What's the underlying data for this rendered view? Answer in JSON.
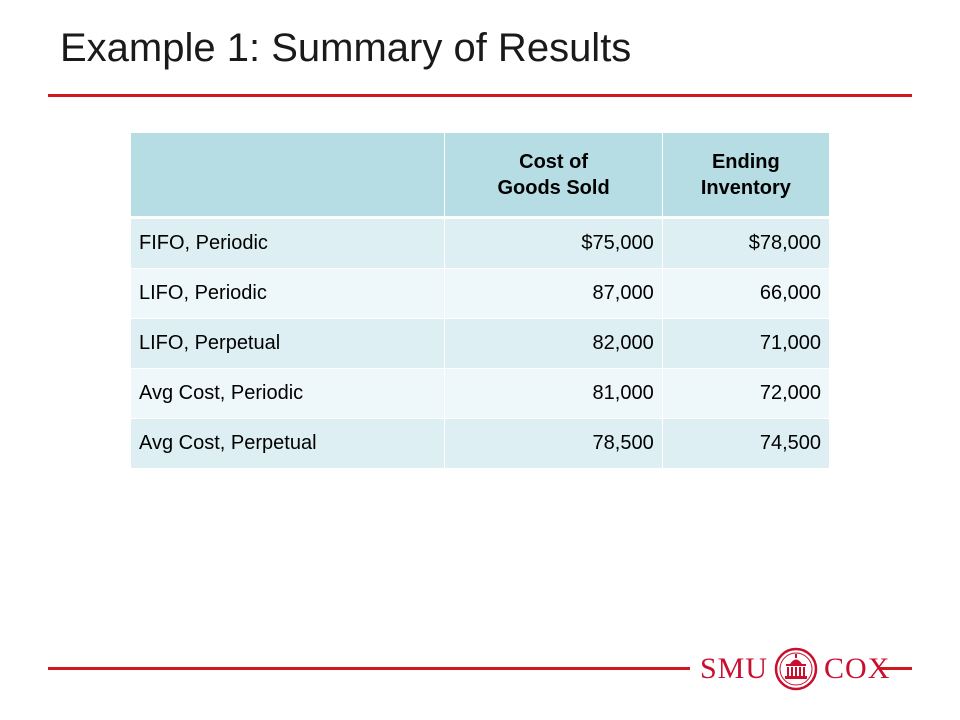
{
  "slide": {
    "title": "Example 1: Summary of Results"
  },
  "table": {
    "header": {
      "blank": "",
      "cogs_line1": "Cost of",
      "cogs_line2": "Goods Sold",
      "inv_line1": "Ending",
      "inv_line2": "Inventory"
    },
    "rows": [
      {
        "label": "FIFO, Periodic",
        "cogs": "$75,000",
        "inventory": "$78,000"
      },
      {
        "label": "LIFO, Periodic",
        "cogs": "87,000",
        "inventory": "66,000"
      },
      {
        "label": "LIFO, Perpetual",
        "cogs": "82,000",
        "inventory": "71,000"
      },
      {
        "label": "Avg Cost, Periodic",
        "cogs": "81,000",
        "inventory": "72,000"
      },
      {
        "label": "Avg Cost, Perpetual",
        "cogs": "78,500",
        "inventory": "74,500"
      }
    ]
  },
  "logo": {
    "left_text": "SMU",
    "right_text": "COX",
    "seal_icon": "smu-dallas-hall-seal-icon"
  },
  "colors": {
    "accent_red": "#d0181f",
    "logo_red": "#c8102e",
    "header_fill": "#b7dde4",
    "row_fill_odd": "#ddeff2",
    "row_fill_even": "#eef7f9"
  }
}
